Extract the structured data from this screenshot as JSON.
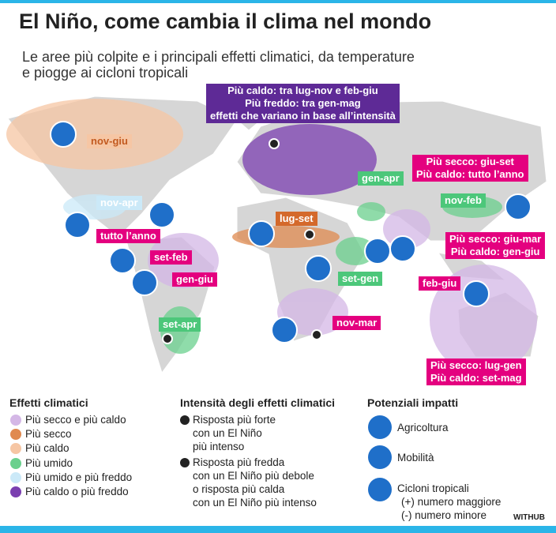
{
  "header": {
    "title": "El Niño, come cambia il clima nel mondo",
    "subtitle_lines": [
      "Le aree più colpite e i principali effetti climatici, da temperature",
      "e piogge ai cicloni tropicali"
    ]
  },
  "map": {
    "labels": [
      {
        "lines": [
          "Più caldo: tra lug-nov e feb-giu",
          "Più freddo: tra gen-mag",
          "effetti che variano in base all’intensità"
        ]
      },
      {
        "lines": [
          "nov-giu"
        ]
      },
      {
        "lines": [
          "nov-apr"
        ]
      },
      {
        "lines": [
          "tutto l’anno"
        ]
      },
      {
        "lines": [
          "set-feb"
        ]
      },
      {
        "lines": [
          "gen-giu"
        ]
      },
      {
        "lines": [
          "set-apr"
        ]
      },
      {
        "lines": [
          "lug-set"
        ]
      },
      {
        "lines": [
          "set-gen"
        ]
      },
      {
        "lines": [
          "nov-mar"
        ]
      },
      {
        "lines": [
          "gen-apr"
        ]
      },
      {
        "lines": [
          "Più secco: giu-set",
          "Più caldo: tutto l’anno"
        ]
      },
      {
        "lines": [
          "nov-feb"
        ]
      },
      {
        "lines": [
          "Più secco: giu-mar",
          "Più caldo: gen-giu"
        ]
      },
      {
        "lines": [
          "feb-giu"
        ]
      },
      {
        "lines": [
          "Più secco: lug-gen",
          "Più caldo: set-mag"
        ]
      }
    ]
  },
  "legend": {
    "effects": {
      "title": "Effetti climatici",
      "items": [
        "Più secco e più caldo",
        "Più secco",
        "Più caldo",
        "Più umido",
        "Più umido e più freddo",
        "Più caldo o più freddo"
      ]
    },
    "intensity": {
      "title": "Intensità degli effetti climatici",
      "items": [
        {
          "lines": [
            "Risposta più forte",
            "con un El Niño",
            "più intenso"
          ]
        },
        {
          "lines": [
            "Risposta più fredda",
            "con un El Niño più debole",
            "o risposta più calda",
            "con un El Niño più intenso"
          ]
        }
      ]
    },
    "impacts": {
      "title": "Potenziali impatti",
      "items": [
        "Agricoltura",
        "Mobilità",
        "Cicloni tropicali"
      ],
      "cyclone_notes": [
        "(+) numero maggiore",
        "(-) numero minore"
      ]
    }
  },
  "footer": {
    "credit": "WITHUB"
  }
}
